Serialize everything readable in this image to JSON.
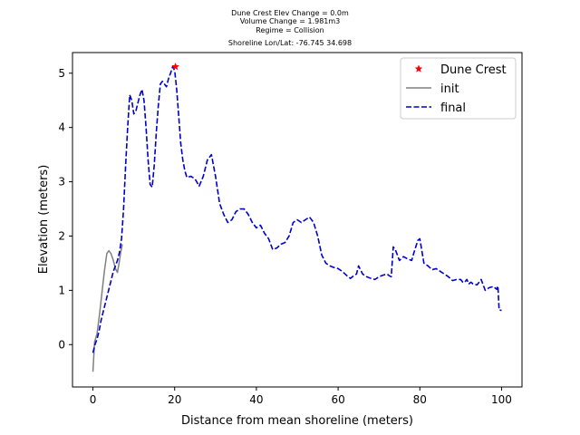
{
  "chart_data": {
    "type": "line",
    "title_lines": [
      "Dune Crest Elev Change = 0.0m",
      "Volume Change = 1.981m3",
      "Regime = Collision",
      "Shoreline Lon/Lat: -76.745 34.698"
    ],
    "xlabel": "Distance from mean shoreline (meters)",
    "ylabel": "Elevation (meters)",
    "xlim": [
      -5,
      105
    ],
    "ylim": [
      -0.78,
      5.38
    ],
    "xticks": [
      0,
      20,
      40,
      60,
      80,
      100
    ],
    "yticks": [
      0,
      1,
      2,
      3,
      4,
      5
    ],
    "legend_position": "top-right",
    "series": [
      {
        "name": "init",
        "color": "#808080",
        "style": "solid",
        "x": [
          0.0,
          0.4,
          1.0,
          1.6,
          2.2,
          2.8,
          3.4,
          3.9,
          4.4,
          5.0,
          5.5,
          6.0,
          6.4,
          6.8,
          7.2
        ],
        "y": [
          -0.5,
          0.05,
          0.2,
          0.55,
          0.95,
          1.35,
          1.68,
          1.73,
          1.68,
          1.55,
          1.4,
          1.33,
          1.5,
          1.7,
          1.85
        ]
      },
      {
        "name": "final",
        "color": "#0000cc",
        "style": "dashed",
        "x": [
          0.0,
          0.5,
          1.0,
          1.5,
          2.0,
          2.5,
          3.0,
          3.5,
          4.0,
          4.5,
          5.0,
          5.5,
          6.0,
          6.5,
          7.0,
          7.5,
          8.0,
          8.5,
          9.0,
          9.5,
          10.0,
          10.5,
          11.0,
          11.5,
          12.0,
          12.5,
          13.0,
          13.5,
          14.0,
          14.5,
          15.0,
          15.5,
          16.0,
          16.5,
          17.0,
          17.5,
          18.0,
          18.5,
          19.0,
          19.5,
          20.0,
          20.5,
          21.0,
          21.5,
          22.0,
          22.5,
          23.0,
          24.0,
          25.0,
          26.0,
          27.0,
          28.0,
          29.0,
          30.0,
          31.0,
          32.0,
          33.0,
          34.0,
          35.0,
          36.0,
          37.0,
          38.0,
          39.0,
          40.0,
          41.0,
          42.0,
          43.0,
          44.0,
          45.0,
          46.0,
          47.0,
          48.0,
          49.0,
          50.0,
          51.0,
          52.0,
          53.0,
          54.0,
          55.0,
          56.0,
          57.0,
          58.0,
          59.0,
          60.0,
          61.0,
          62.0,
          63.0,
          64.0,
          64.5,
          65.0,
          66.0,
          67.0,
          68.0,
          69.0,
          70.0,
          71.0,
          72.0,
          72.5,
          73.0,
          73.5,
          74.0,
          75.0,
          76.0,
          77.0,
          78.0,
          78.5,
          79.0,
          79.5,
          80.0,
          81.0,
          82.0,
          83.0,
          84.0,
          85.0,
          86.0,
          87.0,
          88.0,
          89.0,
          90.0,
          90.5,
          91.0,
          91.5,
          92.0,
          92.5,
          93.0,
          94.0,
          95.0,
          96.0,
          97.0,
          98.0,
          98.8,
          99.1,
          99.4,
          100.0
        ],
        "y": [
          -0.15,
          0.0,
          0.1,
          0.25,
          0.45,
          0.6,
          0.75,
          0.9,
          1.05,
          1.2,
          1.35,
          1.45,
          1.55,
          1.7,
          1.95,
          2.5,
          3.3,
          4.0,
          4.6,
          4.5,
          4.25,
          4.3,
          4.45,
          4.6,
          4.7,
          4.5,
          4.0,
          3.4,
          2.95,
          2.9,
          3.3,
          3.9,
          4.4,
          4.8,
          4.85,
          4.8,
          4.75,
          4.9,
          5.0,
          5.12,
          5.05,
          4.7,
          4.2,
          3.7,
          3.4,
          3.2,
          3.08,
          3.1,
          3.05,
          2.92,
          3.1,
          3.4,
          3.5,
          3.1,
          2.6,
          2.4,
          2.25,
          2.3,
          2.45,
          2.5,
          2.5,
          2.4,
          2.25,
          2.15,
          2.2,
          2.05,
          1.95,
          1.75,
          1.78,
          1.85,
          1.88,
          2.0,
          2.25,
          2.3,
          2.25,
          2.3,
          2.35,
          2.25,
          2.0,
          1.65,
          1.5,
          1.45,
          1.42,
          1.4,
          1.35,
          1.28,
          1.22,
          1.28,
          1.3,
          1.45,
          1.3,
          1.25,
          1.22,
          1.2,
          1.25,
          1.28,
          1.3,
          1.27,
          1.25,
          1.8,
          1.75,
          1.55,
          1.62,
          1.58,
          1.55,
          1.68,
          1.8,
          1.92,
          1.95,
          1.5,
          1.45,
          1.38,
          1.4,
          1.35,
          1.3,
          1.25,
          1.18,
          1.2,
          1.2,
          1.15,
          1.15,
          1.2,
          1.12,
          1.15,
          1.12,
          1.1,
          1.2,
          1.0,
          1.05,
          1.07,
          1.02,
          1.08,
          0.64,
          0.63
        ]
      }
    ],
    "markers": [
      {
        "name": "Dune Crest",
        "color": "#ff0000",
        "symbol": "star",
        "x": 20.2,
        "y": 5.12
      }
    ],
    "legend": [
      {
        "label": "Dune Crest",
        "kind": "marker",
        "color": "#ff0000"
      },
      {
        "label": "init",
        "kind": "line",
        "color": "#808080",
        "style": "solid"
      },
      {
        "label": "final",
        "kind": "line",
        "color": "#0000cc",
        "style": "dashed"
      }
    ]
  }
}
